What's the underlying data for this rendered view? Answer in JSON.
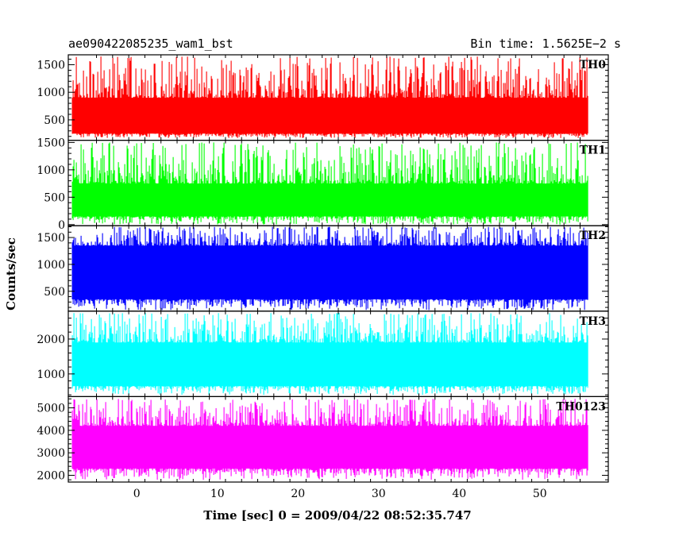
{
  "header": {
    "title": "ae090422085235_wam1_bst",
    "bin_time": "Bin time: 1.5625E−2 s"
  },
  "chart_data": {
    "type": "line",
    "xlabel": "Time [sec] 0 = 2009/04/22 08:52:35.747",
    "ylabel": "Counts/sec",
    "xlim": [
      -8.5,
      58.5
    ],
    "data_range": [
      -8,
      56
    ],
    "x_ticks": [
      0,
      10,
      20,
      30,
      40,
      50
    ],
    "grid": false,
    "panels": [
      {
        "name": "TH0",
        "color": "#ff0000",
        "ylim": [
          130,
          1680
        ],
        "yticks": [
          500,
          1000,
          1500
        ],
        "y_low": 170,
        "y_high": 1650,
        "band": [
          250,
          900
        ]
      },
      {
        "name": "TH1",
        "color": "#00ff00",
        "ylim": [
          -20,
          1540
        ],
        "yticks": [
          0,
          500,
          1000,
          1500
        ],
        "y_low": 0,
        "y_high": 1500,
        "band": [
          150,
          750
        ]
      },
      {
        "name": "TH2",
        "color": "#0000ff",
        "ylim": [
          130,
          1720
        ],
        "yticks": [
          500,
          1000,
          1500
        ],
        "y_low": 150,
        "y_high": 1700,
        "band": [
          350,
          1350
        ]
      },
      {
        "name": "TH3",
        "color": "#00ffff",
        "ylim": [
          350,
          2800
        ],
        "yticks": [
          1000,
          2000
        ],
        "y_low": 400,
        "y_high": 2750,
        "band": [
          650,
          1900
        ]
      },
      {
        "name": "TH0123",
        "color": "#ff00ff",
        "ylim": [
          1700,
          5500
        ],
        "yticks": [
          2000,
          3000,
          4000,
          5000
        ],
        "y_low": 1800,
        "y_high": 5400,
        "band": [
          2300,
          4200
        ]
      }
    ]
  }
}
